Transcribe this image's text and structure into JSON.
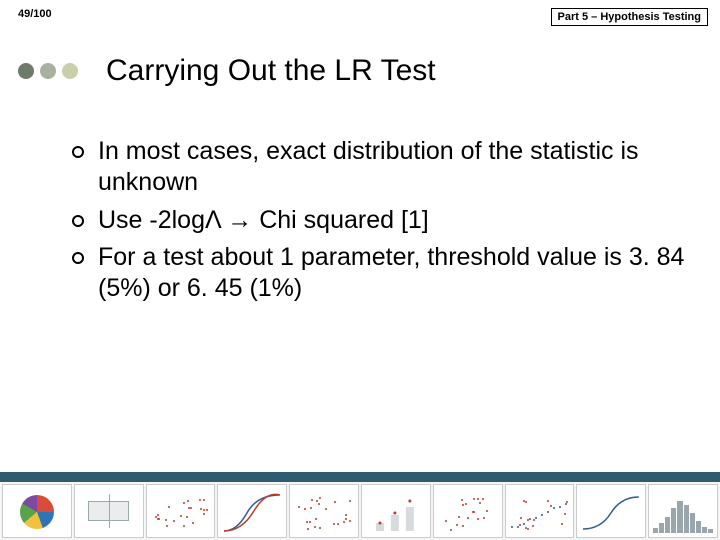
{
  "header": {
    "page_counter": "49/100",
    "section_label": "Part 5 – Hypothesis Testing"
  },
  "title": "Carrying Out the LR Test",
  "title_dots": {
    "colors": [
      "#6e7b6a",
      "#a8b09e",
      "#c9cfa8"
    ]
  },
  "bullets": [
    "In most cases, exact distribution of the statistic is unknown",
    "Use -2logΛ → Chi squared [1]",
    "For a test about 1 parameter, threshold value is 3. 84 (5%) or 6. 45 (1%)"
  ],
  "footer_band_color": "#2e5b6e",
  "thumbs": {
    "pie_colors": [
      "#d94b3a",
      "#2f74b5",
      "#f2c23e",
      "#5aa34a",
      "#7c4aa0"
    ],
    "scatter_red": "#c0392b",
    "scatter_blue": "#2e5b8f",
    "curve_blue": "#2e5b8f",
    "curve_red": "#c0392b",
    "bar_color": "#9aa6ad",
    "box_color": "#9aa6ad"
  }
}
